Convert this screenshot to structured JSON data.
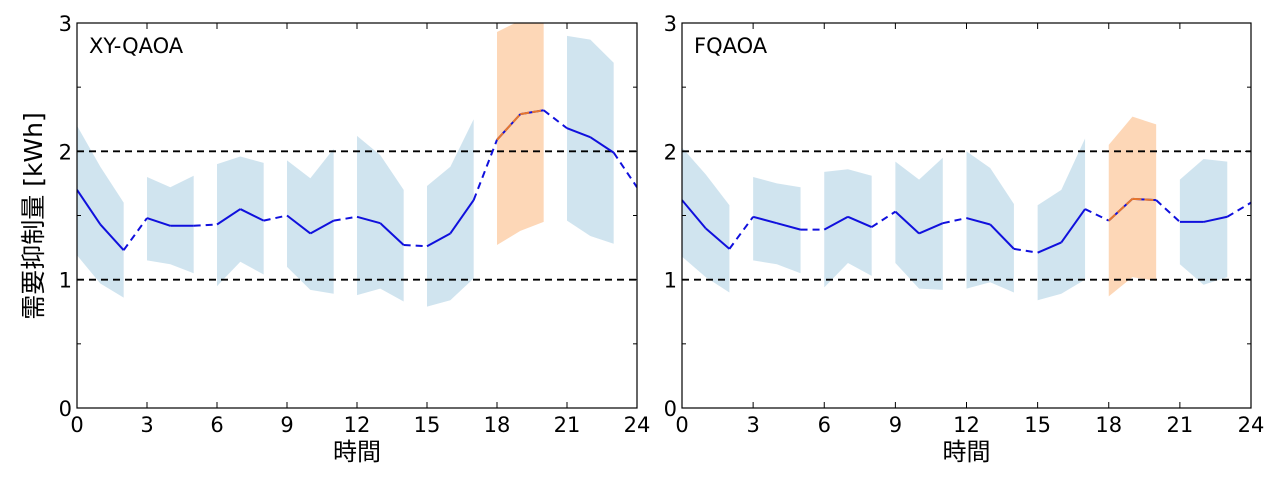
{
  "figure": {
    "ylabel": "需要抑制量 [kWh]"
  },
  "colors": {
    "line": "#1010dd",
    "band": "#a9cde2",
    "highlight_band": "#fdd0aa",
    "highlight_line": "#e8772c",
    "ref": "#000000"
  },
  "chart_data": [
    {
      "type": "line",
      "title": "XY-QAOA",
      "xlabel": "時間",
      "ylabel": "需要抑制量 [kWh]",
      "xlim": [
        0,
        24
      ],
      "ylim": [
        0,
        3
      ],
      "xticks": [
        0,
        3,
        6,
        9,
        12,
        15,
        18,
        21,
        24
      ],
      "yticks": [
        0,
        1,
        2,
        3
      ],
      "reference_lines": [
        1,
        2
      ],
      "x": [
        0,
        1,
        2,
        3,
        4,
        5,
        6,
        7,
        8,
        9,
        10,
        11,
        12,
        13,
        14,
        15,
        16,
        17,
        18,
        19,
        20,
        21,
        22,
        23,
        24
      ],
      "mean": [
        1.7,
        1.43,
        1.23,
        1.48,
        1.42,
        1.42,
        1.43,
        1.55,
        1.46,
        1.5,
        1.36,
        1.46,
        1.49,
        1.44,
        1.27,
        1.26,
        1.36,
        1.62,
        2.09,
        2.29,
        2.32,
        2.18,
        2.11,
        1.99,
        1.72
      ],
      "band_segments": [
        {
          "x": [
            0,
            1,
            2
          ],
          "upper": [
            2.2,
            1.88,
            1.6
          ],
          "lower": [
            1.19,
            0.97,
            0.86
          ],
          "highlight": false
        },
        {
          "x": [
            3,
            4,
            5
          ],
          "upper": [
            1.8,
            1.72,
            1.81
          ],
          "lower": [
            1.15,
            1.12,
            1.05
          ],
          "highlight": false
        },
        {
          "x": [
            6,
            7,
            8
          ],
          "upper": [
            1.9,
            1.96,
            1.91
          ],
          "lower": [
            0.95,
            1.14,
            1.04
          ],
          "highlight": false
        },
        {
          "x": [
            9,
            10,
            11
          ],
          "upper": [
            1.93,
            1.79,
            2.02
          ],
          "lower": [
            1.1,
            0.92,
            0.89
          ],
          "highlight": false
        },
        {
          "x": [
            12,
            13,
            14
          ],
          "upper": [
            2.12,
            1.97,
            1.7
          ],
          "lower": [
            0.88,
            0.93,
            0.83
          ],
          "highlight": false
        },
        {
          "x": [
            15,
            16,
            17
          ],
          "upper": [
            1.73,
            1.88,
            2.25
          ],
          "lower": [
            0.79,
            0.84,
            1.01
          ],
          "highlight": false
        },
        {
          "x": [
            18,
            19,
            20
          ],
          "upper": [
            2.93,
            3.02,
            3.02
          ],
          "lower": [
            1.27,
            1.38,
            1.45
          ],
          "highlight": true
        },
        {
          "x": [
            21,
            22,
            23
          ],
          "upper": [
            2.9,
            2.87,
            2.69
          ],
          "lower": [
            1.46,
            1.34,
            1.28
          ],
          "highlight": false
        }
      ]
    },
    {
      "type": "line",
      "title": "FQAOA",
      "xlabel": "時間",
      "ylabel": "",
      "xlim": [
        0,
        24
      ],
      "ylim": [
        0,
        3
      ],
      "xticks": [
        0,
        3,
        6,
        9,
        12,
        15,
        18,
        21,
        24
      ],
      "yticks": [
        0,
        1,
        2,
        3
      ],
      "reference_lines": [
        1,
        2
      ],
      "x": [
        0,
        1,
        2,
        3,
        4,
        5,
        6,
        7,
        8,
        9,
        10,
        11,
        12,
        13,
        14,
        15,
        16,
        17,
        18,
        19,
        20,
        21,
        22,
        23,
        24
      ],
      "mean": [
        1.62,
        1.4,
        1.24,
        1.49,
        1.44,
        1.39,
        1.39,
        1.49,
        1.41,
        1.53,
        1.36,
        1.44,
        1.48,
        1.43,
        1.24,
        1.21,
        1.29,
        1.55,
        1.46,
        1.63,
        1.62,
        1.45,
        1.45,
        1.49,
        1.6
      ],
      "band_segments": [
        {
          "x": [
            0,
            1,
            2
          ],
          "upper": [
            2.03,
            1.82,
            1.58
          ],
          "lower": [
            1.18,
            1.02,
            0.9
          ],
          "highlight": false
        },
        {
          "x": [
            3,
            4,
            5
          ],
          "upper": [
            1.8,
            1.75,
            1.72
          ],
          "lower": [
            1.15,
            1.12,
            1.05
          ],
          "highlight": false
        },
        {
          "x": [
            6,
            7,
            8
          ],
          "upper": [
            1.84,
            1.86,
            1.81
          ],
          "lower": [
            0.94,
            1.13,
            1.03
          ],
          "highlight": false
        },
        {
          "x": [
            9,
            10,
            11
          ],
          "upper": [
            1.92,
            1.78,
            1.95
          ],
          "lower": [
            1.13,
            0.93,
            0.92
          ],
          "highlight": false
        },
        {
          "x": [
            12,
            13,
            14
          ],
          "upper": [
            2.0,
            1.87,
            1.59
          ],
          "lower": [
            0.93,
            0.98,
            0.9
          ],
          "highlight": false
        },
        {
          "x": [
            15,
            16,
            17
          ],
          "upper": [
            1.58,
            1.7,
            2.1
          ],
          "lower": [
            0.84,
            0.89,
            1.0
          ],
          "highlight": false
        },
        {
          "x": [
            18,
            19,
            20
          ],
          "upper": [
            2.05,
            2.27,
            2.21
          ],
          "lower": [
            0.87,
            1.02,
            0.99
          ],
          "highlight": true
        },
        {
          "x": [
            21,
            22,
            23
          ],
          "upper": [
            1.78,
            1.94,
            1.92
          ],
          "lower": [
            1.12,
            0.96,
            1.02
          ],
          "highlight": false
        }
      ]
    }
  ]
}
